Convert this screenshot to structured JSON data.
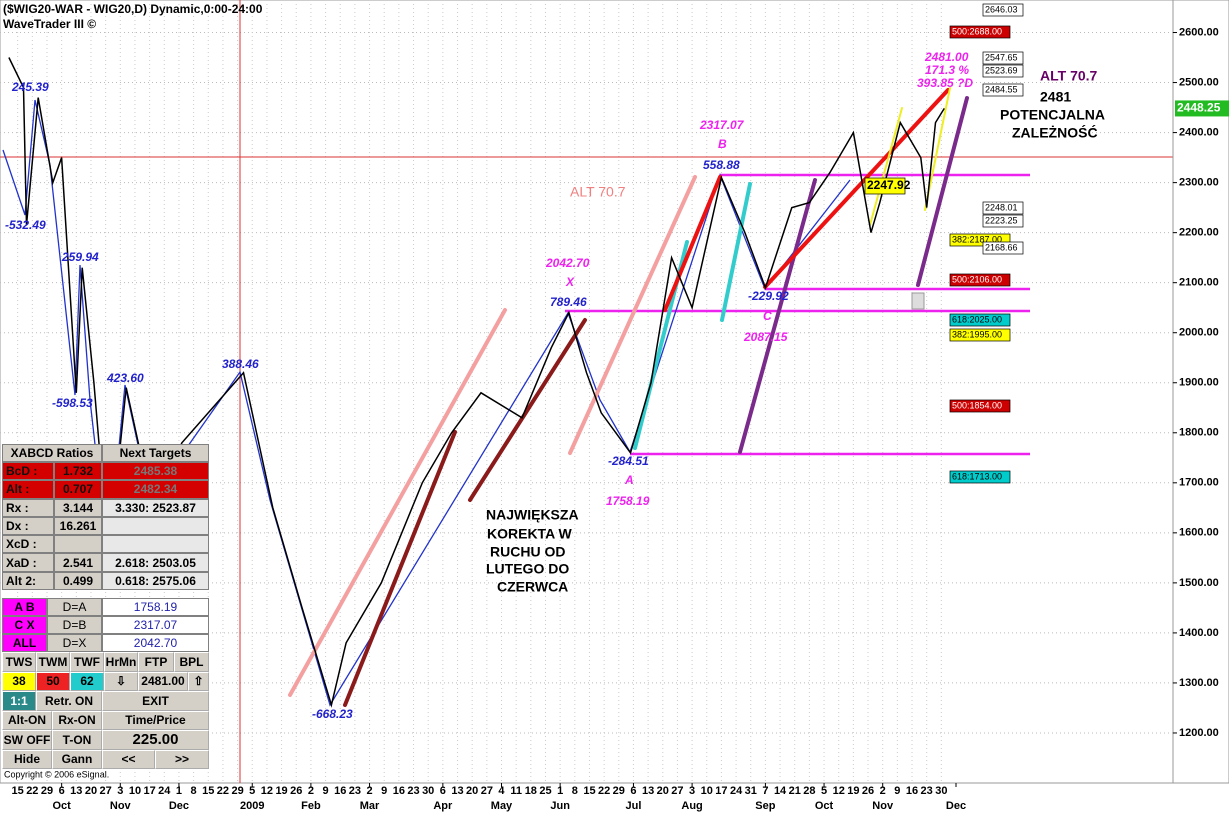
{
  "chart_data": {
    "type": "line",
    "title": "($WIG20-WAR - WIG20,D) Dynamic,0:00-24:00",
    "subtitle": "WaveTrader III ©",
    "copyright": "Copyright © 2006 eSignal.",
    "color": "#000000",
    "grid": true,
    "x": [
      1,
      6,
      7,
      11,
      16,
      19,
      24,
      26,
      30,
      35,
      41,
      50,
      60,
      81,
      91,
      101,
      111,
      116,
      128,
      142,
      152,
      162,
      176,
      186,
      192,
      198,
      203,
      213,
      220,
      227,
      234,
      244,
      252,
      259,
      268,
      274,
      281,
      289,
      295,
      298,
      305,
      312,
      314,
      317,
      320
    ],
    "values": [
      2550,
      2490,
      2215,
      2470,
      2300,
      2350,
      1880,
      2130,
      1900,
      1550,
      1890,
      1650,
      1780,
      1920,
      1650,
      1450,
      1256,
      1380,
      1500,
      1700,
      1800,
      1880,
      1830,
      1970,
      2040,
      1920,
      1840,
      1760,
      1900,
      2150,
      2050,
      2310,
      2200,
      2090,
      2250,
      2260,
      2320,
      2400,
      2200,
      2260,
      2420,
      2350,
      2250,
      2420,
      2448.25
    ],
    "last_price": {
      "value": 2448.25,
      "label": "2448.25"
    },
    "xlim": [
      -1,
      398
    ],
    "ylim": [
      1100,
      2665
    ],
    "yticks": [
      {
        "value": 1200,
        "label": "1200.00"
      },
      {
        "value": 1300,
        "label": "1300.00"
      },
      {
        "value": 1400,
        "label": "1400.00"
      },
      {
        "value": 1500,
        "label": "1500.00"
      },
      {
        "value": 1600,
        "label": "1600.00"
      },
      {
        "value": 1700,
        "label": "1700.00"
      },
      {
        "value": 1800,
        "label": "1800.00"
      },
      {
        "value": 1900,
        "label": "1900.00"
      },
      {
        "value": 2000,
        "label": "2000.00"
      },
      {
        "value": 2100,
        "label": "2100.00"
      },
      {
        "value": 2200,
        "label": "2200.00"
      },
      {
        "value": 2300,
        "label": "2300.00"
      },
      {
        "value": 2400,
        "label": "2400.00"
      },
      {
        "value": 2500,
        "label": "2500.00"
      },
      {
        "value": 2600,
        "label": "2600.00"
      }
    ],
    "xticks": [
      {
        "value": 19,
        "label": "Oct"
      },
      {
        "value": 39,
        "label": "Nov"
      },
      {
        "value": 59,
        "label": "Dec"
      },
      {
        "value": 84,
        "label": "2009"
      },
      {
        "value": 104,
        "label": "Feb"
      },
      {
        "value": 124,
        "label": "Mar"
      },
      {
        "value": 149,
        "label": "Apr"
      },
      {
        "value": 169,
        "label": "May"
      },
      {
        "value": 189,
        "label": "Jun"
      },
      {
        "value": 214,
        "label": "Jul"
      },
      {
        "value": 234,
        "label": "Aug"
      },
      {
        "value": 259,
        "label": "Sep"
      },
      {
        "value": 279,
        "label": "Oct"
      },
      {
        "value": 299,
        "label": "Nov"
      },
      {
        "value": 324,
        "label": "Dec"
      }
    ],
    "dayticks": [
      {
        "value": 4,
        "label": "15"
      },
      {
        "value": 9,
        "label": "22"
      },
      {
        "value": 14,
        "label": "29"
      },
      {
        "value": 19,
        "label": "6"
      },
      {
        "value": 24,
        "label": "13"
      },
      {
        "value": 29,
        "label": "20"
      },
      {
        "value": 34,
        "label": "27"
      },
      {
        "value": 39,
        "label": "3"
      },
      {
        "value": 44,
        "label": "10"
      },
      {
        "value": 49,
        "label": "17"
      },
      {
        "value": 54,
        "label": "24"
      },
      {
        "value": 59,
        "label": "1"
      },
      {
        "value": 64,
        "label": "8"
      },
      {
        "value": 69,
        "label": "15"
      },
      {
        "value": 74,
        "label": "22"
      },
      {
        "value": 79,
        "label": "29"
      },
      {
        "value": 84,
        "label": "5"
      },
      {
        "value": 89,
        "label": "12"
      },
      {
        "value": 94,
        "label": "19"
      },
      {
        "value": 99,
        "label": "26"
      },
      {
        "value": 104,
        "label": "2"
      },
      {
        "value": 109,
        "label": "9"
      },
      {
        "value": 114,
        "label": "16"
      },
      {
        "value": 119,
        "label": "23"
      },
      {
        "value": 124,
        "label": "2"
      },
      {
        "value": 129,
        "label": "9"
      },
      {
        "value": 134,
        "label": "16"
      },
      {
        "value": 139,
        "label": "23"
      },
      {
        "value": 144,
        "label": "30"
      },
      {
        "value": 149,
        "label": "6"
      },
      {
        "value": 154,
        "label": "13"
      },
      {
        "value": 159,
        "label": "20"
      },
      {
        "value": 164,
        "label": "27"
      },
      {
        "value": 169,
        "label": "4"
      },
      {
        "value": 174,
        "label": "11"
      },
      {
        "value": 179,
        "label": "18"
      },
      {
        "value": 184,
        "label": "25"
      },
      {
        "value": 189,
        "label": "1"
      },
      {
        "value": 194,
        "label": "8"
      },
      {
        "value": 199,
        "label": "15"
      },
      {
        "value": 204,
        "label": "22"
      },
      {
        "value": 209,
        "label": "29"
      },
      {
        "value": 214,
        "label": "6"
      },
      {
        "value": 219,
        "label": "13"
      },
      {
        "value": 224,
        "label": "20"
      },
      {
        "value": 229,
        "label": "27"
      },
      {
        "value": 234,
        "label": "3"
      },
      {
        "value": 239,
        "label": "10"
      },
      {
        "value": 244,
        "label": "17"
      },
      {
        "value": 249,
        "label": "24"
      },
      {
        "value": 254,
        "label": "31"
      },
      {
        "value": 259,
        "label": "7"
      },
      {
        "value": 264,
        "label": "14"
      },
      {
        "value": 269,
        "label": "21"
      },
      {
        "value": 274,
        "label": "28"
      },
      {
        "value": 279,
        "label": "5"
      },
      {
        "value": 284,
        "label": "12"
      },
      {
        "value": 289,
        "label": "19"
      },
      {
        "value": 294,
        "label": "26"
      },
      {
        "value": 299,
        "label": "2"
      },
      {
        "value": 304,
        "label": "9"
      },
      {
        "value": 309,
        "label": "16"
      },
      {
        "value": 314,
        "label": "23"
      },
      {
        "value": 319,
        "label": "30"
      }
    ],
    "level_boxes": [
      {
        "text": "2646.03",
        "color": "#ffffff"
      },
      {
        "text": "500:2688.00",
        "color": "#cc0000"
      },
      {
        "text": "2547.65",
        "color": "#ffffff"
      },
      {
        "text": "2523.69",
        "color": "#ffffff"
      },
      {
        "text": "2484.55",
        "color": "#ffffff"
      },
      {
        "text": "2248.01",
        "color": "#ffffff"
      },
      {
        "text": "2223.25",
        "color": "#ffffff"
      },
      {
        "text": "382:2187.00",
        "color": "#ffff00"
      },
      {
        "text": "2168.66",
        "color": "#ffffff"
      },
      {
        "text": "500:2106.00",
        "color": "#cc0000"
      },
      {
        "text": "618:2025.00",
        "color": "#00cccc"
      },
      {
        "text": "382:1995.00",
        "color": "#ffff00"
      },
      {
        "text": "500:1854.00",
        "color": "#cc0000"
      },
      {
        "text": "618:1713.00",
        "color": "#00cccc"
      },
      {
        "text": "2247.92",
        "color": "#ffff00"
      }
    ],
    "annotations": [
      {
        "text": "245.39",
        "color": "#2222cc"
      },
      {
        "text": "-532.49",
        "color": "#2222cc"
      },
      {
        "text": "259.94",
        "color": "#2222cc"
      },
      {
        "text": "-598.53",
        "color": "#2222cc"
      },
      {
        "text": "423.60",
        "color": "#2222cc"
      },
      {
        "text": "388.46",
        "color": "#2222cc"
      },
      {
        "text": "-668.23",
        "color": "#2222cc"
      },
      {
        "text": "789.46",
        "color": "#2222cc"
      },
      {
        "text": "-284.51",
        "color": "#2222cc"
      },
      {
        "text": "558.88",
        "color": "#2222cc"
      },
      {
        "text": "-229.92",
        "color": "#2222cc"
      },
      {
        "text": "2042.70",
        "color": "#ee22ee"
      },
      {
        "text": "X",
        "color": "#ee22ee"
      },
      {
        "text": "2317.07",
        "color": "#ee22ee"
      },
      {
        "text": "B",
        "color": "#ee22ee"
      },
      {
        "text": "A",
        "color": "#ee22ee"
      },
      {
        "text": "1758.19",
        "color": "#ee22ee"
      },
      {
        "text": "C",
        "color": "#ee22ee"
      },
      {
        "text": "2087.15",
        "color": "#ee22ee"
      },
      {
        "text": "2481.00",
        "color": "#ee22ee"
      },
      {
        "text": "171.3 %",
        "color": "#ee22ee"
      },
      {
        "text": "393.85 ?D",
        "color": "#ee22ee"
      },
      {
        "text": "ALT 70.7",
        "color": "#f08080"
      },
      {
        "text": "ALT 70.7",
        "color": "#660066"
      },
      {
        "text": "2481",
        "color": "#000000"
      },
      {
        "text": "POTENCJALNA",
        "color": "#000000"
      },
      {
        "text": "ZALEŻNOŚĆ",
        "color": "#000000"
      },
      {
        "text": "NAJWIĘKSZA",
        "color": "#000000"
      },
      {
        "text": "KOREKTA W",
        "color": "#000000"
      },
      {
        "text": "RUCHU OD",
        "color": "#000000"
      },
      {
        "text": "LUTEGO DO",
        "color": "#000000"
      },
      {
        "text": "CZERWCA",
        "color": "#000000"
      }
    ]
  },
  "panel": {
    "header": [
      "XABCD Ratios",
      "Next Targets"
    ],
    "ratios": [
      [
        "BcD :",
        "1.732",
        "2485.38"
      ],
      [
        "Alt :",
        "0.707",
        "2482.34"
      ],
      [
        "Rx :",
        "3.144",
        "3.330: 2523.87"
      ],
      [
        "Dx :",
        "16.261"
      ],
      [
        "XcD :"
      ],
      [
        "XaD :",
        "2.541",
        "2.618: 2503.05"
      ],
      [
        "Alt 2:",
        "0.499",
        "0.618: 2575.06"
      ]
    ],
    "targets": [
      [
        "A  B",
        "D=A",
        "1758.19"
      ],
      [
        "C  X",
        "D=B",
        "2317.07"
      ],
      [
        "ALL",
        "D=X",
        "2042.70"
      ]
    ],
    "buttons": [
      [
        "TWS",
        "TWM",
        "TWF",
        "HrMn",
        "FTP",
        "BPL"
      ],
      [
        "38",
        "50",
        "62",
        "⇩",
        "2481.00",
        "⇧"
      ],
      [
        "1:1",
        "Retr. ON",
        "EXIT"
      ],
      [
        "Alt-ON",
        "Rx-ON",
        "Time/Price"
      ],
      [
        "SW OFF",
        "T-ON",
        "225.00"
      ],
      [
        "Hide",
        "Gann",
        "<<",
        ">>"
      ]
    ]
  }
}
